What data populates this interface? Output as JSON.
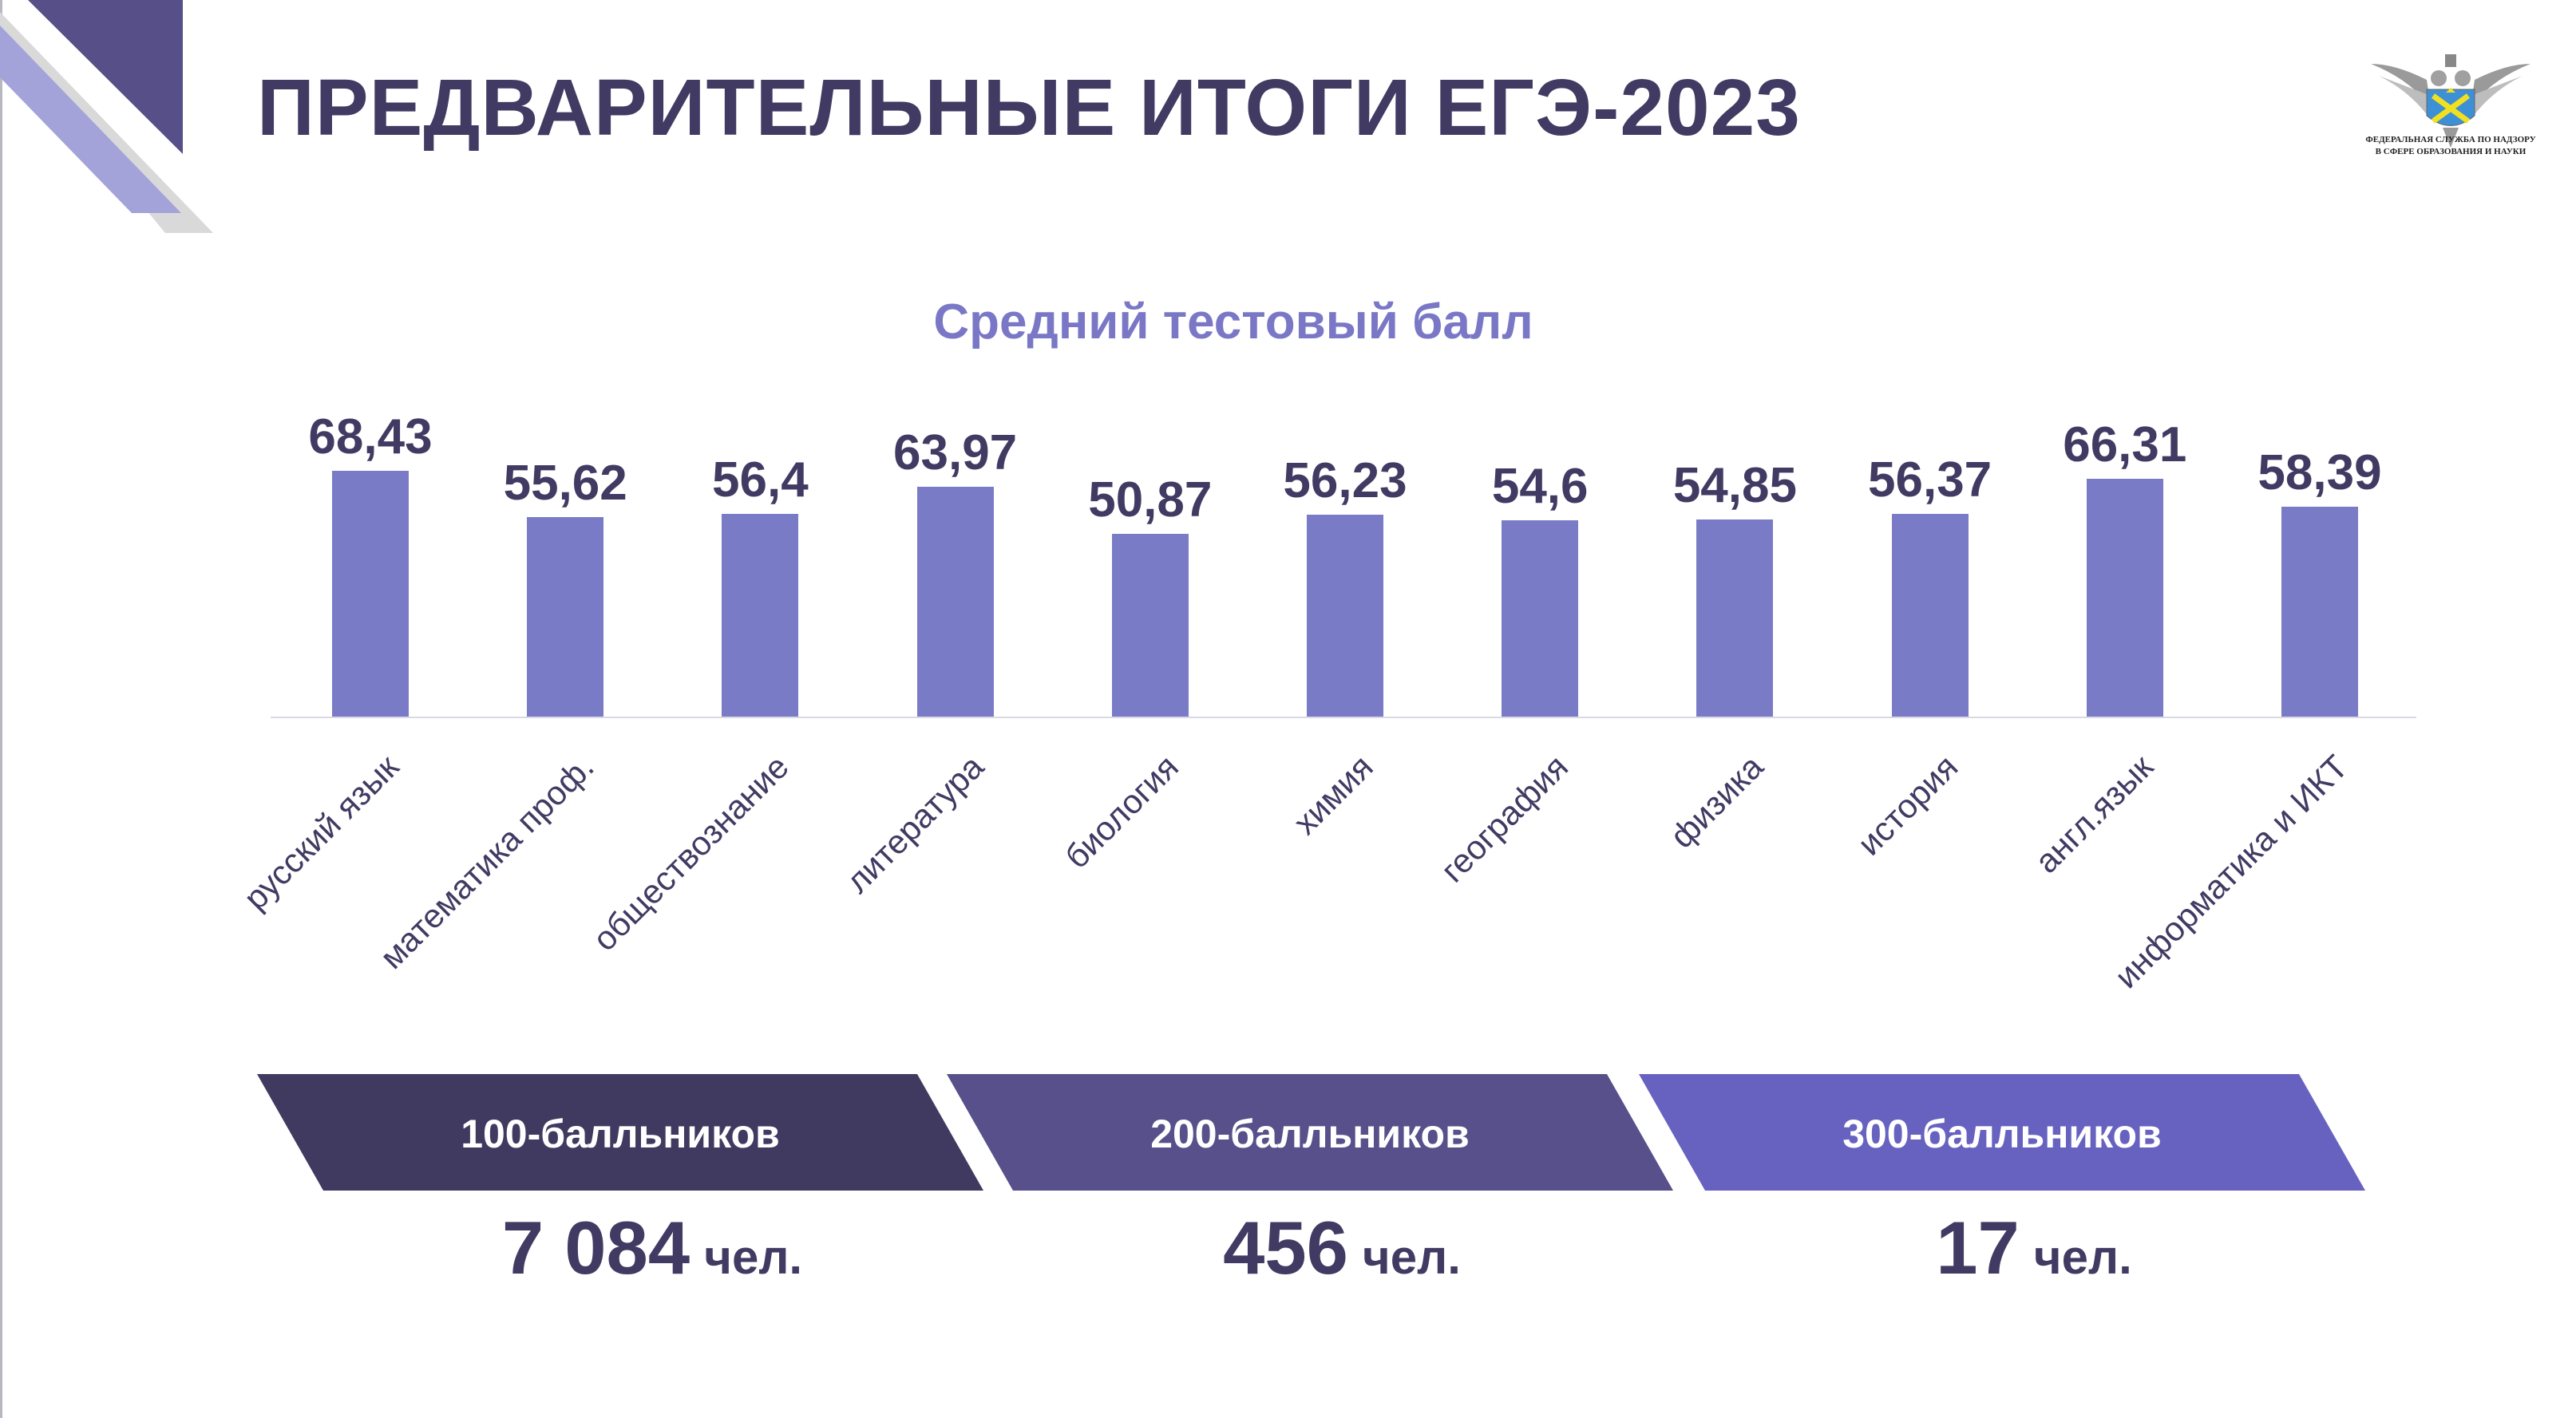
{
  "title": "ПРЕДВАРИТЕЛЬНЫЕ ИТОГИ ЕГЭ-2023",
  "logo": {
    "text_line1": "ФЕДЕРАЛЬНАЯ СЛУЖБА ПО НАДЗОРУ",
    "text_line2": "В СФЕРЕ ОБРАЗОВАНИЯ И НАУКИ"
  },
  "chart_data": {
    "type": "bar",
    "title": "Средний тестовый балл",
    "categories": [
      "русский язык",
      "математика проф.",
      "обществознание",
      "литература",
      "биология",
      "химия",
      "география",
      "физика",
      "история",
      "англ.язык",
      "информатика и ИКТ"
    ],
    "values": [
      68.43,
      55.62,
      56.4,
      63.97,
      50.87,
      56.23,
      54.6,
      54.85,
      56.37,
      66.31,
      58.39
    ],
    "value_labels": [
      "68,43",
      "55,62",
      "56,4",
      "63,97",
      "50,87",
      "56,23",
      "54,6",
      "54,85",
      "56,37",
      "66,31",
      "58,39"
    ],
    "xlabel": "",
    "ylabel": "",
    "ylim": [
      0,
      70
    ],
    "grid": false,
    "bar_color": "#7a7bc6"
  },
  "summary": [
    {
      "label": "100-балльников",
      "count": "7 084",
      "unit": "чел.",
      "color": "#403a60"
    },
    {
      "label": "200-балльников",
      "count": "456",
      "unit": "чел.",
      "color": "#58508a"
    },
    {
      "label": "300-балльников",
      "count": "17",
      "unit": "чел.",
      "color": "#6762c0"
    }
  ]
}
